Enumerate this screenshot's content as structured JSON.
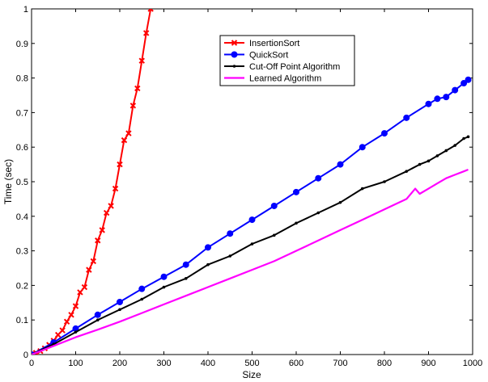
{
  "chart_data": {
    "type": "line",
    "title": "",
    "xlabel": "Size",
    "ylabel": "Time (sec)",
    "xlim": [
      0,
      1000
    ],
    "ylim": [
      0,
      1
    ],
    "xticks": [
      0,
      100,
      200,
      300,
      400,
      500,
      600,
      700,
      800,
      900,
      1000
    ],
    "yticks": [
      0,
      0.1,
      0.2,
      0.3,
      0.4,
      0.5,
      0.6,
      0.7,
      0.8,
      0.9,
      1
    ],
    "grid": false,
    "legend_position": "top-right",
    "series": [
      {
        "name": "InsertionSort",
        "color": "#ff0000",
        "marker": "x",
        "x": [
          0,
          10,
          20,
          30,
          40,
          50,
          60,
          70,
          80,
          90,
          100,
          110,
          120,
          130,
          140,
          150,
          160,
          170,
          180,
          190,
          200,
          210,
          220,
          230,
          240,
          250,
          260,
          270
        ],
        "y": [
          0,
          0.005,
          0.01,
          0.018,
          0.028,
          0.04,
          0.057,
          0.07,
          0.095,
          0.115,
          0.14,
          0.18,
          0.195,
          0.245,
          0.27,
          0.33,
          0.36,
          0.41,
          0.43,
          0.48,
          0.55,
          0.62,
          0.64,
          0.72,
          0.77,
          0.85,
          0.93,
          1.0
        ]
      },
      {
        "name": "QuickSort",
        "color": "#0000ff",
        "marker": "o",
        "x": [
          0,
          50,
          100,
          150,
          200,
          250,
          300,
          350,
          400,
          450,
          500,
          550,
          600,
          650,
          700,
          750,
          800,
          850,
          900,
          920,
          940,
          960,
          980,
          990
        ],
        "y": [
          0,
          0.035,
          0.075,
          0.115,
          0.152,
          0.19,
          0.225,
          0.26,
          0.31,
          0.35,
          0.39,
          0.43,
          0.47,
          0.51,
          0.55,
          0.6,
          0.64,
          0.685,
          0.725,
          0.74,
          0.745,
          0.765,
          0.785,
          0.795
        ]
      },
      {
        "name": "Cut-Off Point Algorithm",
        "color": "#000000",
        "marker": ".",
        "x": [
          0,
          50,
          100,
          150,
          200,
          250,
          300,
          350,
          400,
          450,
          500,
          550,
          600,
          650,
          700,
          750,
          800,
          850,
          880,
          900,
          920,
          940,
          960,
          980,
          990
        ],
        "y": [
          0,
          0.03,
          0.065,
          0.1,
          0.13,
          0.16,
          0.195,
          0.22,
          0.26,
          0.285,
          0.32,
          0.345,
          0.38,
          0.41,
          0.44,
          0.48,
          0.5,
          0.53,
          0.55,
          0.56,
          0.575,
          0.59,
          0.605,
          0.625,
          0.63
        ]
      },
      {
        "name": "Learned Algorithm",
        "color": "#ff00ff",
        "marker": "",
        "x": [
          0,
          50,
          100,
          150,
          200,
          250,
          300,
          350,
          400,
          450,
          500,
          550,
          600,
          650,
          700,
          750,
          800,
          850,
          870,
          880,
          900,
          920,
          940,
          960,
          980,
          990
        ],
        "y": [
          0,
          0.025,
          0.05,
          0.072,
          0.095,
          0.12,
          0.145,
          0.17,
          0.195,
          0.22,
          0.245,
          0.27,
          0.3,
          0.33,
          0.36,
          0.39,
          0.42,
          0.45,
          0.48,
          0.465,
          0.48,
          0.495,
          0.51,
          0.52,
          0.53,
          0.535
        ]
      }
    ]
  }
}
